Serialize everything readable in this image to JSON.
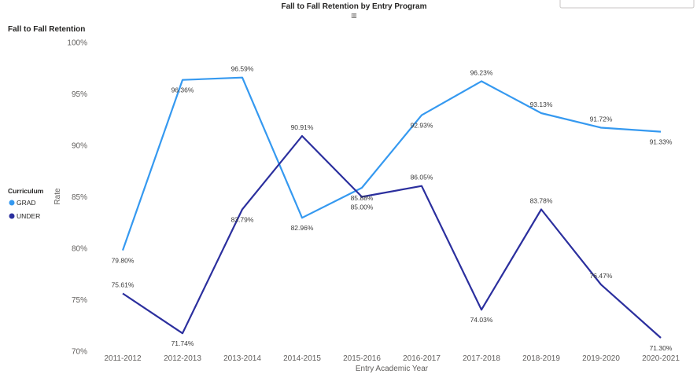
{
  "chart_data": {
    "type": "line",
    "title": "Fall to Fall Retention by Entry Program",
    "subtitle": "Fall to Fall Retention",
    "xlabel": "Entry Academic Year",
    "ylabel": "Rate",
    "ylim": [
      70,
      100
    ],
    "yticks": [
      "70%",
      "75%",
      "80%",
      "85%",
      "90%",
      "95%",
      "100%"
    ],
    "grid": false,
    "legend_title": "Curriculum",
    "legend_position": "left",
    "categories": [
      "2011-2012",
      "2012-2013",
      "2013-2014",
      "2014-2015",
      "2015-2016",
      "2016-2017",
      "2017-2018",
      "2018-2019",
      "2019-2020",
      "2020-2021"
    ],
    "series": [
      {
        "name": "GRAD",
        "color": "#3599f0",
        "values": [
          79.8,
          96.36,
          96.59,
          82.96,
          85.88,
          92.93,
          96.23,
          93.13,
          91.72,
          91.33
        ],
        "labels": [
          "79.80%",
          "96.36%",
          "96.59%",
          "82.96%",
          "85.88%",
          "92.93%",
          "96.23%",
          "93.13%",
          "91.72%",
          "91.33%"
        ]
      },
      {
        "name": "UNDER",
        "color": "#2b2f9e",
        "values": [
          75.61,
          71.74,
          83.79,
          90.91,
          85.0,
          86.05,
          74.03,
          83.78,
          76.47,
          71.3
        ],
        "labels": [
          "75.61%",
          "71.74%",
          "83.79%",
          "90.91%",
          "85.00%",
          "86.05%",
          "74.03%",
          "83.78%",
          "76.47%",
          "71.30%"
        ]
      }
    ]
  },
  "ui": {
    "visual_header_icon": "focus-mode-icon",
    "filter_box": "filter-box"
  }
}
